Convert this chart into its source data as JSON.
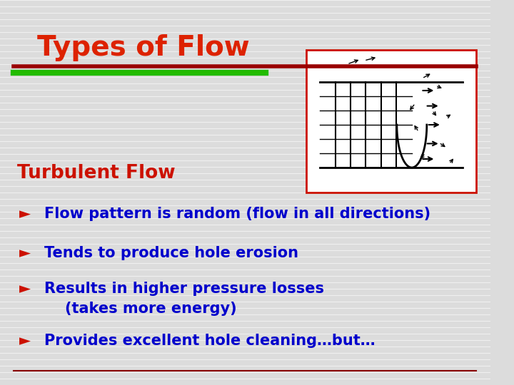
{
  "title": "Types of Flow",
  "title_color": "#DD2200",
  "section_title": "Turbulent Flow",
  "section_title_color": "#CC1100",
  "bullet_color": "#CC1100",
  "text_color": "#0000CC",
  "bullets": [
    "Flow pattern is random (flow in all directions)",
    "Tends to produce hole erosion",
    "Results in higher pressure losses\n    (takes more energy)",
    "Provides excellent hole cleaning…but…"
  ],
  "background_color": "#DCDCDC",
  "red_line_color": "#990000",
  "green_line_color": "#22BB00",
  "image_box_color": "#CC1100",
  "bottom_line_color": "#880000"
}
